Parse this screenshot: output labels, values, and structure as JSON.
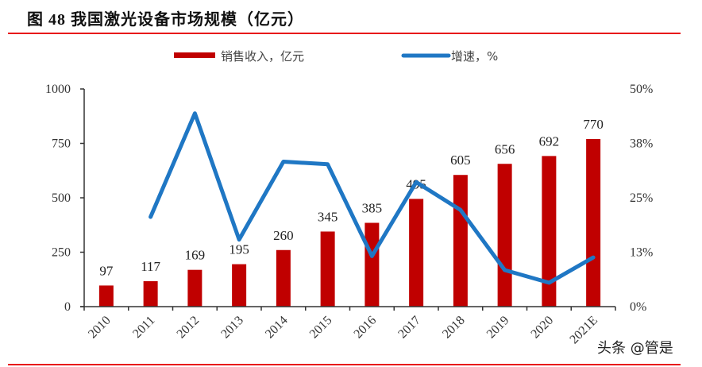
{
  "header": {
    "figure_label": "图",
    "figure_number": "48",
    "title_text": "我国激光设备市场规模（亿元）"
  },
  "watermark": "头条 @管是",
  "colors": {
    "bar": "#c00000",
    "line": "#1f77c4",
    "rule": "#e8121a",
    "axis": "#333333"
  },
  "chart_data": {
    "type": "bar+line",
    "title": "我国激光设备市场规模（亿元）",
    "categories": [
      "2010",
      "2011",
      "2012",
      "2013",
      "2014",
      "2015",
      "2016",
      "2017",
      "2018",
      "2019",
      "2020",
      "2021E"
    ],
    "series": [
      {
        "name": "销售收入，亿元",
        "type": "bar",
        "axis": "left",
        "values": [
          97,
          117,
          169,
          195,
          260,
          345,
          385,
          495,
          605,
          656,
          692,
          770
        ]
      },
      {
        "name": "增速，%",
        "type": "line",
        "axis": "right",
        "values": [
          null,
          20.6,
          44.4,
          15.4,
          33.3,
          32.7,
          11.6,
          28.6,
          22.2,
          8.4,
          5.5,
          11.3
        ]
      }
    ],
    "left_axis": {
      "ylim": [
        0,
        1000
      ],
      "ticks": [
        "0",
        "250",
        "500",
        "750",
        "1000"
      ]
    },
    "right_axis": {
      "ylim": [
        0,
        50
      ],
      "ticks": [
        "0%",
        "13%",
        "25%",
        "38%",
        "50%"
      ]
    },
    "xlabel": "",
    "ylabel": "",
    "grid": false,
    "legend_position": "top"
  }
}
